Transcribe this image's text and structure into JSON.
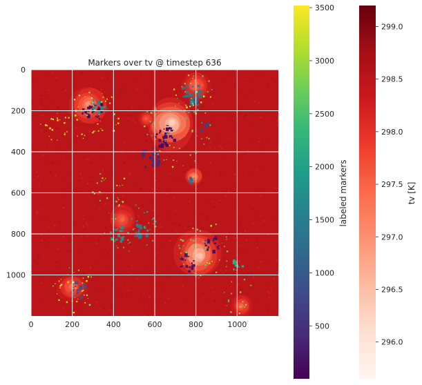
{
  "chart_data": {
    "type": "heatmap",
    "title": "Markers over tv @ timestep 636",
    "xlabel": "",
    "ylabel": "",
    "xlim": [
      0,
      1200
    ],
    "ylim": [
      1200,
      0
    ],
    "x_ticks": [
      0,
      200,
      400,
      600,
      800,
      1000
    ],
    "y_ticks": [
      0,
      200,
      400,
      600,
      800,
      1000
    ],
    "grid": true,
    "grid_color": "#ffffff",
    "background_field": {
      "name": "tv",
      "colormap": "Reds",
      "range": [
        295.65,
        299.2
      ]
    },
    "markers_field": {
      "name": "labeled markers",
      "colormap": "viridis",
      "range": [
        1,
        3520
      ]
    },
    "colorbars": [
      {
        "label": "labeled markers",
        "colormap": "viridis",
        "range": [
          1,
          3520
        ],
        "ticks": [
          500,
          1000,
          1500,
          2000,
          2500,
          3000,
          3500
        ]
      },
      {
        "label": "tv [K]",
        "colormap": "Reds",
        "range": [
          295.65,
          299.2
        ],
        "ticks": [
          "296.0",
          "296.5",
          "297.0",
          "297.5",
          "298.0",
          "298.5",
          "299.0"
        ]
      }
    ],
    "warm_blobs": [
      {
        "x": 280,
        "y": 170,
        "r": 90,
        "v": 296.8
      },
      {
        "x": 680,
        "y": 260,
        "r": 120,
        "v": 296.0
      },
      {
        "x": 800,
        "y": 80,
        "r": 70,
        "v": 297.3
      },
      {
        "x": 790,
        "y": 520,
        "r": 45,
        "v": 296.8
      },
      {
        "x": 440,
        "y": 730,
        "r": 70,
        "v": 297.4
      },
      {
        "x": 810,
        "y": 900,
        "r": 110,
        "v": 296.2
      },
      {
        "x": 200,
        "y": 1060,
        "r": 70,
        "v": 297.3
      },
      {
        "x": 1020,
        "y": 1150,
        "r": 50,
        "v": 297.3
      },
      {
        "x": 560,
        "y": 240,
        "r": 40,
        "v": 297.5
      }
    ],
    "marker_clusters": [
      {
        "x": 300,
        "y": 200,
        "r": 55,
        "v": 120,
        "n": 26
      },
      {
        "x": 650,
        "y": 330,
        "r": 60,
        "v": 150,
        "n": 30
      },
      {
        "x": 580,
        "y": 430,
        "r": 50,
        "v": 400,
        "n": 22
      },
      {
        "x": 780,
        "y": 110,
        "r": 50,
        "v": 1400,
        "n": 24
      },
      {
        "x": 800,
        "y": 150,
        "r": 30,
        "v": 1300,
        "n": 10
      },
      {
        "x": 530,
        "y": 780,
        "r": 45,
        "v": 1450,
        "n": 20
      },
      {
        "x": 880,
        "y": 850,
        "r": 40,
        "v": 150,
        "n": 18
      },
      {
        "x": 760,
        "y": 940,
        "r": 45,
        "v": 220,
        "n": 16
      },
      {
        "x": 230,
        "y": 1070,
        "r": 40,
        "v": 900,
        "n": 18
      },
      {
        "x": 330,
        "y": 180,
        "r": 45,
        "v": 1600,
        "n": 14
      },
      {
        "x": 420,
        "y": 800,
        "r": 40,
        "v": 1800,
        "n": 12
      },
      {
        "x": 780,
        "y": 540,
        "r": 20,
        "v": 1200,
        "n": 8
      },
      {
        "x": 1000,
        "y": 950,
        "r": 30,
        "v": 2200,
        "n": 10
      },
      {
        "x": 830,
        "y": 270,
        "r": 35,
        "v": 700,
        "n": 10
      }
    ],
    "marker_speckles": [
      {
        "x": 300,
        "y": 220,
        "r": 130,
        "v": 3200,
        "n": 40
      },
      {
        "x": 700,
        "y": 300,
        "r": 170,
        "v": 2700,
        "n": 55
      },
      {
        "x": 480,
        "y": 770,
        "r": 130,
        "v": 2400,
        "n": 40
      },
      {
        "x": 850,
        "y": 880,
        "r": 150,
        "v": 2800,
        "n": 45
      },
      {
        "x": 210,
        "y": 1070,
        "r": 110,
        "v": 3300,
        "n": 35
      },
      {
        "x": 780,
        "y": 110,
        "r": 110,
        "v": 3000,
        "n": 30
      },
      {
        "x": 120,
        "y": 270,
        "r": 80,
        "v": 3400,
        "n": 20
      },
      {
        "x": 380,
        "y": 580,
        "r": 90,
        "v": 2900,
        "n": 20
      },
      {
        "x": 1000,
        "y": 1100,
        "r": 90,
        "v": 2600,
        "n": 15
      }
    ]
  }
}
